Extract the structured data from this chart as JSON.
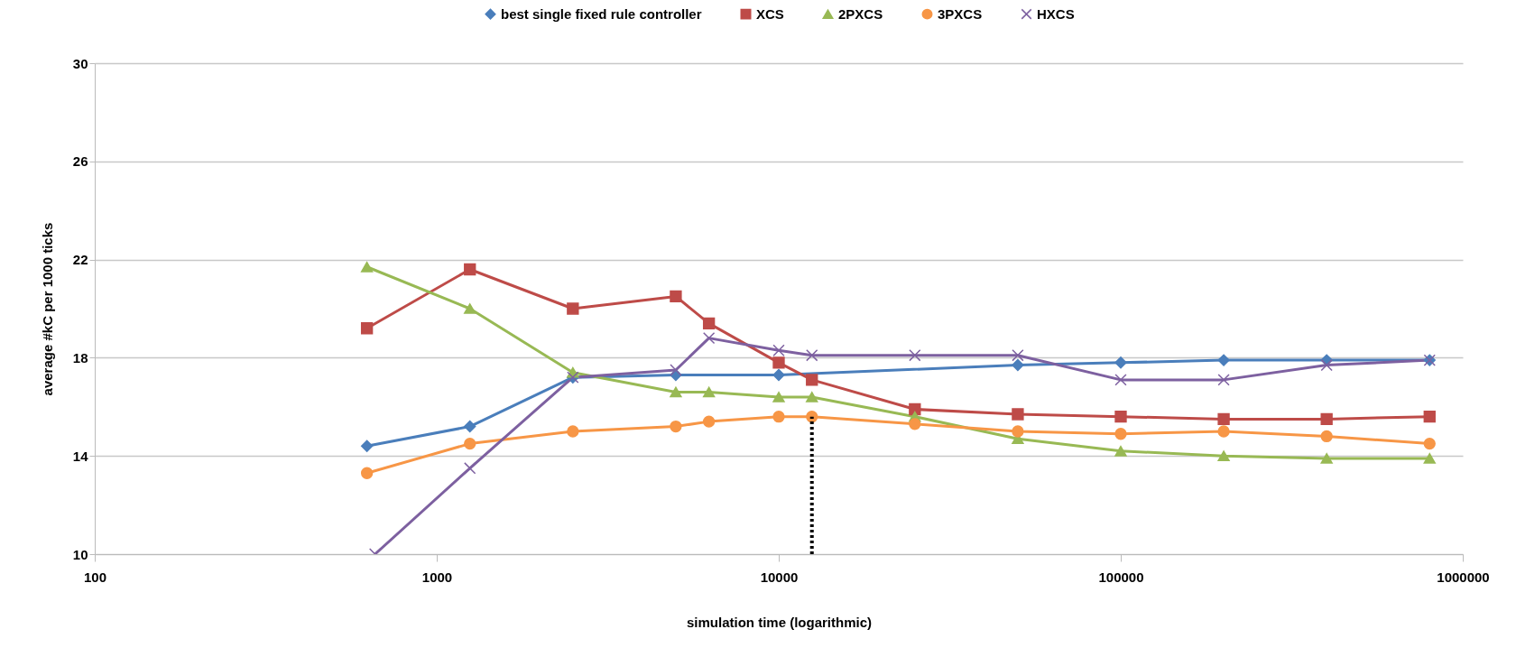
{
  "chart_data": {
    "type": "line",
    "xlabel": "simulation time (logarithmic)",
    "ylabel": "average #kC per 1000 ticks",
    "log": "x",
    "xlim": [
      100,
      1000000
    ],
    "xticks": [
      100,
      1000,
      10000,
      100000,
      1000000
    ],
    "ylim": [
      10,
      30
    ],
    "yticks": [
      10,
      14,
      18,
      22,
      26,
      30
    ],
    "grid": "y",
    "legend": "top",
    "series": [
      {
        "name": "best single fixed rule controller",
        "color": "#4a7ebb",
        "marker": "diamond",
        "x": [
          625,
          1250,
          2500,
          5000,
          10000,
          50000,
          100000,
          200000,
          400000,
          800000
        ],
        "values": [
          14.4,
          15.2,
          17.2,
          17.3,
          17.3,
          17.7,
          17.8,
          17.9,
          17.9,
          17.9
        ]
      },
      {
        "name": "XCS",
        "color": "#be4b48",
        "marker": "square",
        "x": [
          625,
          1250,
          2500,
          5000,
          6250,
          10000,
          12500,
          25000,
          50000,
          100000,
          200000,
          400000,
          800000
        ],
        "values": [
          19.2,
          21.6,
          20.0,
          20.5,
          19.4,
          17.8,
          17.1,
          15.9,
          15.7,
          15.6,
          15.5,
          15.5,
          15.6
        ]
      },
      {
        "name": "2PXCS",
        "color": "#98b954",
        "marker": "triangle",
        "x": [
          625,
          1250,
          2500,
          5000,
          6250,
          10000,
          12500,
          25000,
          50000,
          100000,
          200000,
          400000,
          800000
        ],
        "values": [
          21.7,
          20.0,
          17.4,
          16.6,
          16.6,
          16.4,
          16.4,
          15.6,
          14.7,
          14.2,
          14.0,
          13.9,
          13.9
        ]
      },
      {
        "name": "3PXCS",
        "color": "#f79646",
        "marker": "circle",
        "x": [
          625,
          1250,
          2500,
          5000,
          6250,
          10000,
          12500,
          25000,
          50000,
          100000,
          200000,
          400000,
          800000
        ],
        "values": [
          13.3,
          14.5,
          15.0,
          15.2,
          15.4,
          15.6,
          15.6,
          15.3,
          15.0,
          14.9,
          15.0,
          14.8,
          14.5
        ]
      },
      {
        "name": "HXCS",
        "color": "#7d60a0",
        "marker": "cross",
        "x": [
          660,
          1250,
          2500,
          5000,
          6250,
          10000,
          12500,
          25000,
          50000,
          100000,
          200000,
          400000,
          800000
        ],
        "values": [
          10,
          13.5,
          17.2,
          17.5,
          18.8,
          18.3,
          18.1,
          18.1,
          18.1,
          17.1,
          17.1,
          17.7,
          17.9
        ]
      }
    ],
    "ref_lines": [
      {
        "axis": "x",
        "value": 12500,
        "color": "#000000",
        "line_style": "dotted"
      }
    ]
  }
}
